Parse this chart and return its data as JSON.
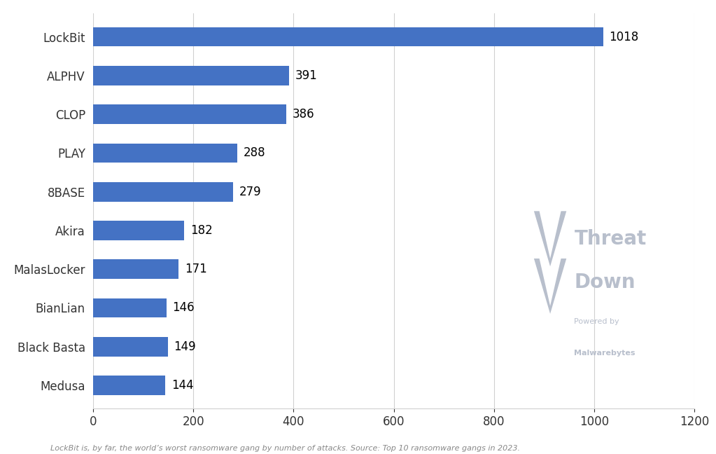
{
  "categories": [
    "LockBit",
    "ALPHV",
    "CLOP",
    "PLAY",
    "8BASE",
    "Akira",
    "MalasLocker",
    "BianLian",
    "Black Basta",
    "Medusa"
  ],
  "values": [
    1018,
    391,
    386,
    288,
    279,
    182,
    171,
    146,
    149,
    144
  ],
  "bar_color": "#4472C4",
  "background_color": "#ffffff",
  "xlim": [
    0,
    1200
  ],
  "xticks": [
    0,
    200,
    400,
    600,
    800,
    1000,
    1200
  ],
  "label_fontsize": 12,
  "tick_fontsize": 12,
  "ytick_fontsize": 12,
  "bar_height": 0.5,
  "gridcolor": "#d0d0d0",
  "watermark_color": "#b8bfcc",
  "watermark_text_color": "#b8bfcc",
  "subtitle_text": "LockBit is, by far, the world’s worst ransomware gang by number of attacks. Source: Top 10 ransomware gangs in 2023."
}
